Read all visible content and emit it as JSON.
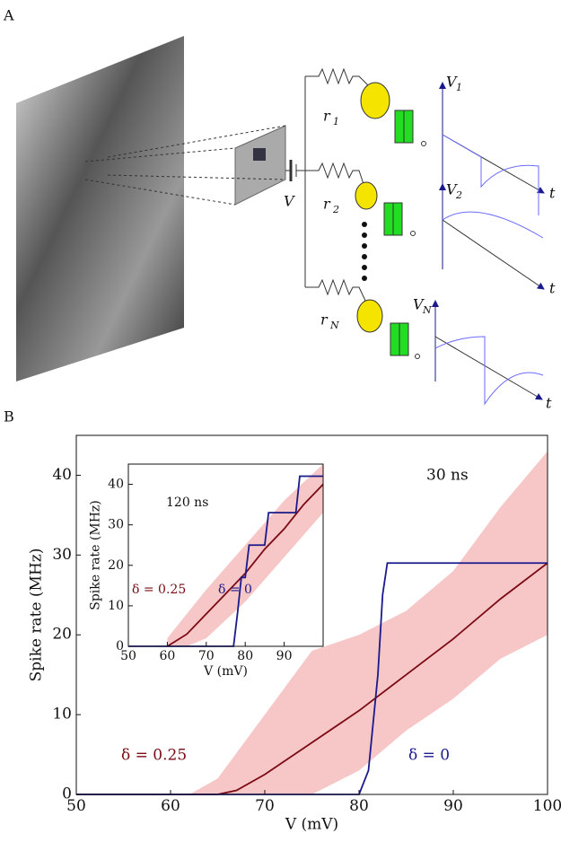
{
  "panel_a": {
    "label": "A",
    "battery_label": "V",
    "resistors": [
      {
        "symbol": "r",
        "sub": "1"
      },
      {
        "symbol": "r",
        "sub": "2"
      },
      {
        "symbol": "r",
        "sub": "N"
      }
    ],
    "outputs": [
      {
        "symbol": "V",
        "sub": "1",
        "axis": "t"
      },
      {
        "symbol": "V",
        "sub": "2",
        "axis": "t"
      },
      {
        "symbol": "V",
        "sub": "N",
        "axis": "t"
      }
    ]
  },
  "panel_b": {
    "label": "B"
  },
  "chart_data": [
    {
      "type": "line",
      "xlabel": "V (mV)",
      "ylabel": "Spike rate (MHz)",
      "xlim": [
        50,
        100
      ],
      "ylim": [
        0,
        45
      ],
      "xticks": [
        50,
        60,
        70,
        80,
        90,
        100
      ],
      "yticks": [
        0,
        10,
        20,
        30,
        40
      ],
      "annotations": [
        "30 ns",
        "δ = 0.25",
        "δ = 0"
      ],
      "band": {
        "color": "#f7c6c6",
        "x": [
          62,
          65,
          70,
          75,
          80,
          85,
          90,
          95,
          100
        ],
        "lower": [
          0,
          0,
          0,
          0,
          3,
          8,
          12,
          17,
          20
        ],
        "upper": [
          0,
          2,
          10,
          18,
          20,
          23,
          28,
          36,
          43
        ]
      },
      "series": [
        {
          "color": "#7a0a14",
          "x": [
            50,
            65,
            67,
            70,
            75,
            80,
            85,
            90,
            95,
            100
          ],
          "values": [
            0,
            0,
            0.5,
            2.5,
            6.5,
            10.5,
            15,
            19.5,
            24.5,
            29
          ]
        },
        {
          "color": "#1a1a8c",
          "x": [
            50,
            80,
            81,
            82,
            82.5,
            83,
            100
          ],
          "values": [
            0,
            0,
            3,
            15,
            25,
            29,
            29
          ]
        }
      ]
    },
    {
      "type": "line",
      "xlabel": "V (mV)",
      "ylabel": "Spike rate (MHz)",
      "xlim": [
        50,
        100
      ],
      "ylim": [
        0,
        45
      ],
      "xticks": [
        50,
        60,
        70,
        80,
        90
      ],
      "yticks": [
        0,
        10,
        20,
        30,
        40
      ],
      "annotations": [
        "120 ns",
        "δ = 0.25",
        "δ = 0"
      ],
      "band": {
        "color": "#f7c6c6",
        "x": [
          60,
          65,
          70,
          80,
          90,
          100
        ],
        "lower": [
          0,
          0,
          2,
          11,
          22,
          33
        ],
        "upper": [
          2,
          8,
          14,
          25,
          36,
          45
        ]
      },
      "series": [
        {
          "color": "#7a0a14",
          "x": [
            60,
            65,
            70,
            75,
            80,
            85,
            90,
            95,
            100
          ],
          "values": [
            0,
            3,
            8,
            13,
            18,
            24,
            29,
            35,
            40
          ]
        },
        {
          "color": "#1a1a8c",
          "x": [
            50,
            77,
            78,
            79,
            80,
            81,
            85,
            86,
            93,
            94,
            100
          ],
          "values": [
            0,
            0,
            8,
            17,
            17,
            25,
            25,
            33,
            33,
            42,
            42
          ]
        }
      ]
    }
  ]
}
